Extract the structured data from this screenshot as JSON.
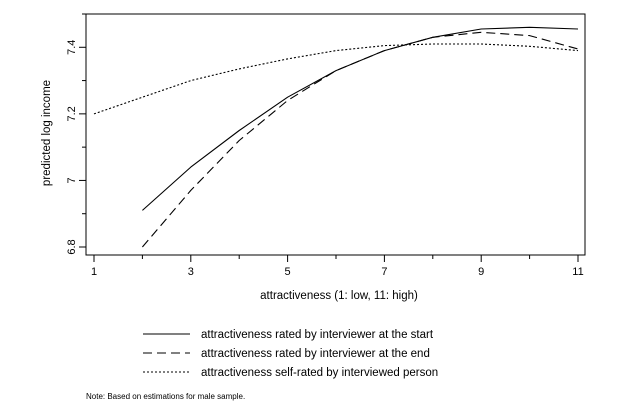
{
  "chart_data": {
    "type": "line",
    "title": "",
    "xlabel": "attractiveness (1: low, 11: high)",
    "ylabel": "predicted log income",
    "xlim": [
      1,
      11
    ],
    "ylim": [
      6.8,
      7.5
    ],
    "xticks": [
      1,
      3,
      5,
      7,
      9,
      11
    ],
    "yticks": [
      6.8,
      7,
      7.2,
      7.4
    ],
    "ytick_labels": [
      "6.8",
      "7",
      "7.2",
      "7.4"
    ],
    "grid": false,
    "legend_position": "bottom",
    "series": [
      {
        "name": "attractiveness rated by interviewer at the start",
        "style": "solid",
        "x": [
          2,
          3,
          4,
          5,
          6,
          7,
          8,
          9,
          10,
          11
        ],
        "values": [
          6.91,
          7.04,
          7.15,
          7.25,
          7.33,
          7.39,
          7.43,
          7.455,
          7.46,
          7.455
        ]
      },
      {
        "name": "attractiveness rated by interviewer at the end",
        "style": "dashed",
        "x": [
          2,
          3,
          4,
          5,
          6,
          7,
          8,
          9,
          10,
          11
        ],
        "values": [
          6.8,
          6.97,
          7.12,
          7.24,
          7.33,
          7.39,
          7.43,
          7.445,
          7.435,
          7.395
        ]
      },
      {
        "name": "attractiveness self-rated by interviewed person",
        "style": "dotted",
        "x": [
          1,
          2,
          3,
          4,
          5,
          6,
          7,
          8,
          9,
          10,
          11
        ],
        "values": [
          7.2,
          7.25,
          7.3,
          7.335,
          7.365,
          7.39,
          7.405,
          7.41,
          7.41,
          7.403,
          7.39
        ]
      }
    ],
    "note": "Note: Based on estimations for male sample."
  }
}
